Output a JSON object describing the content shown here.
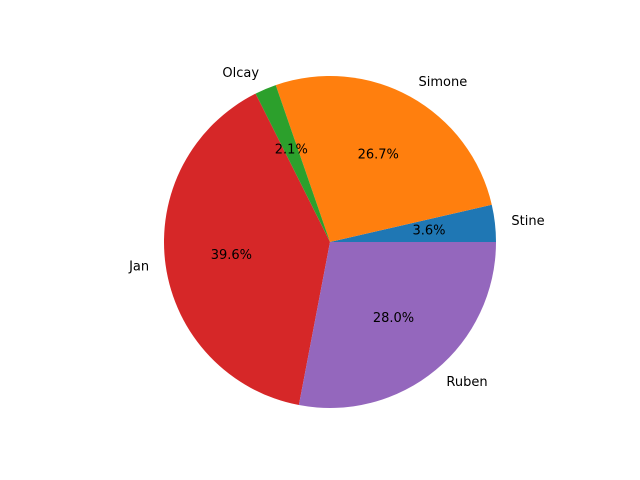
{
  "chart_data": {
    "type": "pie",
    "title": "",
    "start_angle_deg": 0,
    "direction": "counterclockwise",
    "slices": [
      {
        "label": "Stine",
        "value": 3.6,
        "pct_label": "3.6%",
        "color": "#1f77b4"
      },
      {
        "label": "Simone",
        "value": 26.7,
        "pct_label": "26.7%",
        "color": "#ff7f0e"
      },
      {
        "label": "Olcay",
        "value": 2.1,
        "pct_label": "2.1%",
        "color": "#2ca02c"
      },
      {
        "label": "Jan",
        "value": 39.6,
        "pct_label": "39.6%",
        "color": "#d62728"
      },
      {
        "label": "Ruben",
        "value": 28.0,
        "pct_label": "28.0%",
        "color": "#9467bd"
      }
    ]
  }
}
